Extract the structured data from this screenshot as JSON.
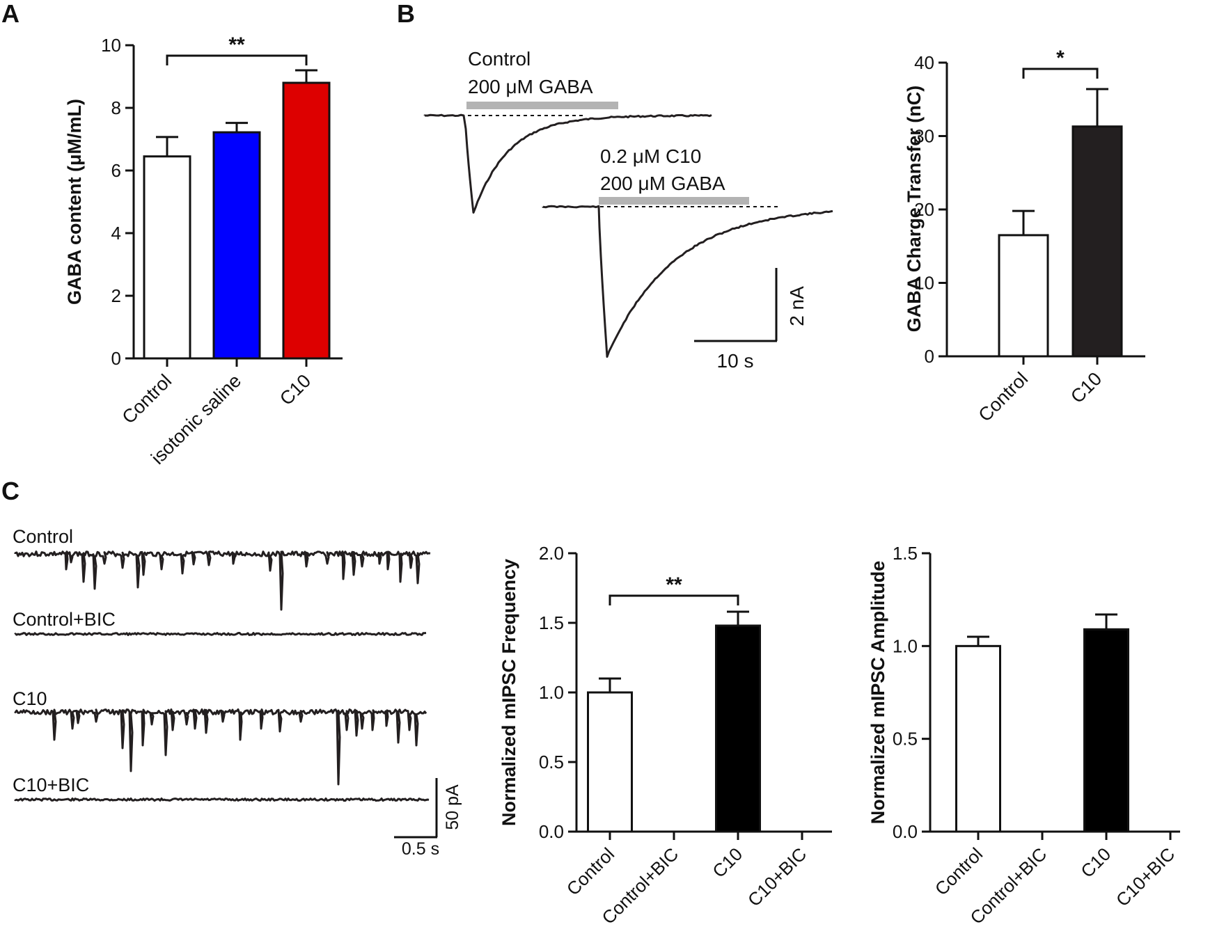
{
  "panel_labels": [
    "A",
    "B",
    "C"
  ],
  "chart_data": [
    {
      "id": "A",
      "type": "bar",
      "title": "",
      "xlabel": "",
      "ylabel": "GABA content (μM/mL)",
      "ylim": [
        0,
        10
      ],
      "yticks": [
        "0",
        "2",
        "4",
        "6",
        "8",
        "10"
      ],
      "categories": [
        "Control",
        "isotonic saline",
        "C10"
      ],
      "values": [
        6.45,
        7.22,
        8.8
      ],
      "errors": [
        0.62,
        0.3,
        0.4
      ],
      "colors": [
        "#ffffff",
        "#0000ff",
        "#dd0000"
      ],
      "significance": [
        {
          "from": 0,
          "to": 2,
          "label": "**"
        }
      ]
    },
    {
      "id": "B-right",
      "type": "bar",
      "title": "",
      "xlabel": "",
      "ylabel": "GABA Charge Transfer (nC)",
      "ylim": [
        0,
        40
      ],
      "yticks": [
        "0",
        "10",
        "20",
        "30",
        "40"
      ],
      "categories": [
        "Control",
        "C10"
      ],
      "values": [
        16.5,
        31.3
      ],
      "errors": [
        3.3,
        5.1
      ],
      "colors": [
        "#ffffff",
        "#231f20"
      ],
      "significance": [
        {
          "from": 0,
          "to": 1,
          "label": "*"
        }
      ]
    },
    {
      "id": "C-frequency",
      "type": "bar",
      "title": "",
      "xlabel": "",
      "ylabel": "Normalized mIPSC Frequency",
      "ylim": [
        0,
        2
      ],
      "yticks": [
        "0.0",
        "0.5",
        "1.0",
        "1.5",
        "2.0"
      ],
      "categories": [
        "Control",
        "Control+BIC",
        "C10",
        "C10+BIC"
      ],
      "values": [
        1.0,
        0,
        1.48,
        0
      ],
      "errors": [
        0.1,
        0,
        0.1,
        0
      ],
      "colors": [
        "#ffffff",
        "#ffffff",
        "#000000",
        "#ffffff"
      ],
      "significance": [
        {
          "from": 0,
          "to": 2,
          "label": "**"
        }
      ]
    },
    {
      "id": "C-amplitude",
      "type": "bar",
      "title": "",
      "xlabel": "",
      "ylabel": "Normalized mIPSC Amplitude",
      "ylim": [
        0,
        1.5
      ],
      "yticks": [
        "0.0",
        "0.5",
        "1.0",
        "1.5"
      ],
      "categories": [
        "Control",
        "Control+BIC",
        "C10",
        "C10+BIC"
      ],
      "values": [
        1.0,
        0,
        1.09,
        0
      ],
      "errors": [
        0.05,
        0,
        0.08,
        0
      ],
      "colors": [
        "#ffffff",
        "#ffffff",
        "#000000",
        "#ffffff"
      ],
      "significance": []
    }
  ],
  "traces_b": {
    "control_label": "Control",
    "control_drug": "200 μM GABA",
    "c10_label": "0.2 μM C10",
    "c10_drug": "200 μM GABA",
    "scale_y": "2 nA",
    "scale_x": "10 s"
  },
  "traces_c": {
    "labels": [
      "Control",
      "Control+BIC",
      "C10",
      "C10+BIC"
    ],
    "scale_y": "50 pA",
    "scale_x": "0.5 s"
  }
}
